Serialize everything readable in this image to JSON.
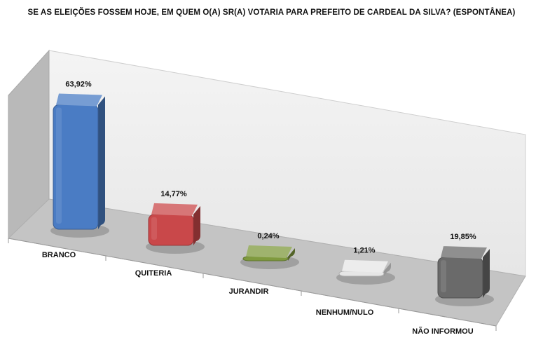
{
  "chart_data": {
    "type": "bar",
    "title": "SE AS ELEIÇÕES FOSSEM HOJE, EM QUEM O(A) SR(A) VOTARIA PARA PREFEITO DE CARDEAL DA SILVA? (ESPONTÂNEA)",
    "categories": [
      "BRANCO",
      "QUITERIA",
      "JURANDIR",
      "NENHUM/NULO",
      "NÃO INFORMOU"
    ],
    "values": [
      63.92,
      14.77,
      0.24,
      1.21,
      19.85
    ],
    "value_labels": [
      "63,92%",
      "14,77%",
      "0,24%",
      "1,21%",
      "19,85%"
    ],
    "colors": [
      "#4a7cc4",
      "#c9484a",
      "#7f9a3e",
      "#e6e6e6",
      "#6a6a6a"
    ],
    "ylim": [
      0,
      70
    ],
    "style": "3d",
    "legend": "none",
    "grid": false
  }
}
